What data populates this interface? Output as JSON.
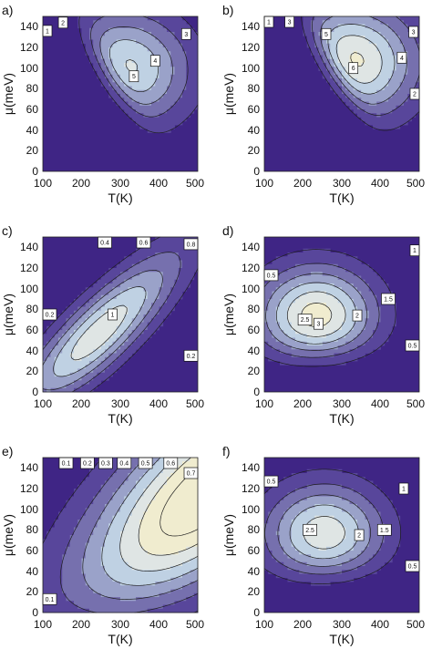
{
  "colors": {
    "levels": [
      "#3f2585",
      "#58469b",
      "#7670ae",
      "#9aa2c9",
      "#bfd1e3",
      "#dfe5e4",
      "#f0eccf"
    ],
    "contour_line": "#1e1e1e",
    "label_box": "#ffffff"
  },
  "chart_data": [
    {
      "type": "contour",
      "panel": "a)",
      "xlabel": "T(K)",
      "ylabel": "μ(meV)",
      "xlim": [
        100,
        500
      ],
      "ylim": [
        0,
        150
      ],
      "xticks": [
        100,
        200,
        300,
        400,
        500
      ],
      "yticks": [
        0,
        20,
        40,
        60,
        80,
        100,
        120,
        140
      ],
      "peak": {
        "T": 305,
        "mu": 98,
        "value": 5.4
      },
      "levels": [
        1,
        2,
        3,
        4,
        5
      ],
      "labels": [
        {
          "text": "1",
          "T": 106,
          "mu": 136
        },
        {
          "text": "2",
          "T": 152,
          "mu": 144
        },
        {
          "text": "3",
          "T": 470,
          "mu": 133
        },
        {
          "text": "4",
          "T": 390,
          "mu": 107
        },
        {
          "text": "5",
          "T": 335,
          "mu": 92
        }
      ]
    },
    {
      "type": "contour",
      "panel": "b)",
      "xlabel": "T(K)",
      "ylabel": "μ(meV)",
      "xlim": [
        100,
        500
      ],
      "ylim": [
        0,
        150
      ],
      "xticks": [
        100,
        200,
        300,
        400,
        500
      ],
      "yticks": [
        0,
        20,
        40,
        60,
        80,
        100,
        120,
        140
      ],
      "peak": {
        "T": 320,
        "mu": 105,
        "value": 6.4
      },
      "levels": [
        1,
        2,
        3,
        4,
        5,
        6
      ],
      "labels": [
        {
          "text": "1",
          "T": 104,
          "mu": 147
        },
        {
          "text": "3",
          "T": 165,
          "mu": 147
        },
        {
          "text": "3",
          "T": 485,
          "mu": 135
        },
        {
          "text": "5",
          "T": 260,
          "mu": 133
        },
        {
          "text": "4",
          "T": 455,
          "mu": 110
        },
        {
          "text": "6",
          "T": 330,
          "mu": 100
        },
        {
          "text": "2",
          "T": 495,
          "mu": 75
        }
      ]
    },
    {
      "type": "contour",
      "panel": "c)",
      "xlabel": "T(K)",
      "ylabel": "μ(meV)",
      "xlim": [
        100,
        500
      ],
      "ylim": [
        0,
        150
      ],
      "xticks": [
        100,
        200,
        300,
        400,
        500
      ],
      "yticks": [
        0,
        20,
        40,
        60,
        80,
        100,
        120,
        140
      ],
      "peak": {
        "T": 240,
        "mu": 55,
        "value": 1.15
      },
      "levels": [
        0.2,
        0.4,
        0.6,
        0.8,
        1
      ],
      "labels": [
        {
          "text": "0.4",
          "T": 260,
          "mu": 148
        },
        {
          "text": "0.6",
          "T": 360,
          "mu": 148
        },
        {
          "text": "0.8",
          "T": 490,
          "mu": 143
        },
        {
          "text": "0.2",
          "T": 110,
          "mu": 75
        },
        {
          "text": "1",
          "T": 280,
          "mu": 75
        },
        {
          "text": "0.2",
          "T": 490,
          "mu": 35
        }
      ]
    },
    {
      "type": "contour",
      "panel": "d)",
      "xlabel": "T(K)",
      "ylabel": "μ(meV)",
      "xlim": [
        100,
        500
      ],
      "ylim": [
        0,
        150
      ],
      "xticks": [
        100,
        200,
        300,
        400,
        500
      ],
      "yticks": [
        0,
        20,
        40,
        60,
        80,
        100,
        120,
        140
      ],
      "peak": {
        "T": 235,
        "mu": 72,
        "value": 3.3
      },
      "levels": [
        0.5,
        1,
        1.5,
        2,
        2.5,
        3
      ],
      "labels": [
        {
          "text": "1",
          "T": 490,
          "mu": 137
        },
        {
          "text": "0.5",
          "T": 110,
          "mu": 113
        },
        {
          "text": "1.5",
          "T": 420,
          "mu": 90
        },
        {
          "text": "2",
          "T": 340,
          "mu": 74
        },
        {
          "text": "2.5",
          "T": 205,
          "mu": 70
        },
        {
          "text": "3",
          "T": 240,
          "mu": 66
        },
        {
          "text": "0.5",
          "T": 490,
          "mu": 45
        }
      ]
    },
    {
      "type": "contour",
      "panel": "e)",
      "xlabel": "T(K)",
      "ylabel": "μ(meV)",
      "xlim": [
        100,
        500
      ],
      "ylim": [
        0,
        150
      ],
      "xticks": [
        100,
        200,
        300,
        400,
        500
      ],
      "yticks": [
        0,
        20,
        40,
        60,
        80,
        100,
        120,
        140
      ],
      "peak": {
        "T": 520,
        "mu": 115,
        "value": 0.8
      },
      "levels": [
        0.1,
        0.2,
        0.3,
        0.4,
        0.5,
        0.6,
        0.7
      ],
      "labels": [
        {
          "text": "0.1",
          "T": 160,
          "mu": 147
        },
        {
          "text": "0.2",
          "T": 215,
          "mu": 147
        },
        {
          "text": "0.3",
          "T": 262,
          "mu": 147
        },
        {
          "text": "0.4",
          "T": 310,
          "mu": 147
        },
        {
          "text": "0.5",
          "T": 365,
          "mu": 147
        },
        {
          "text": "0.6",
          "T": 430,
          "mu": 147
        },
        {
          "text": "0.7",
          "T": 490,
          "mu": 135
        },
        {
          "text": "0.1",
          "T": 110,
          "mu": 13
        }
      ]
    },
    {
      "type": "contour",
      "panel": "f)",
      "xlabel": "T(K)",
      "ylabel": "μ(meV)",
      "xlim": [
        100,
        500
      ],
      "ylim": [
        0,
        150
      ],
      "xticks": [
        100,
        200,
        300,
        400,
        500
      ],
      "yticks": [
        0,
        20,
        40,
        60,
        80,
        100,
        120,
        140
      ],
      "peak": {
        "T": 255,
        "mu": 75,
        "value": 2.9
      },
      "levels": [
        0.5,
        1,
        1.5,
        2,
        2.5
      ],
      "labels": [
        {
          "text": "0.5",
          "T": 108,
          "mu": 127
        },
        {
          "text": "1",
          "T": 460,
          "mu": 120
        },
        {
          "text": "1.5",
          "T": 410,
          "mu": 80
        },
        {
          "text": "2",
          "T": 345,
          "mu": 75
        },
        {
          "text": "2.5",
          "T": 218,
          "mu": 80
        },
        {
          "text": "0.5",
          "T": 490,
          "mu": 45
        }
      ]
    }
  ]
}
